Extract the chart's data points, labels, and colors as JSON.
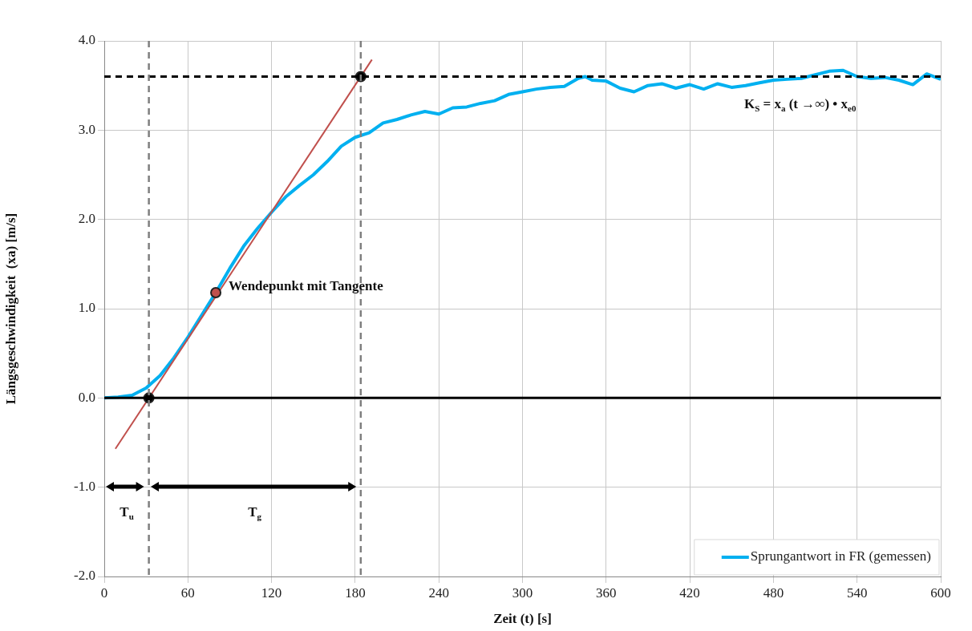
{
  "chart_data": {
    "type": "line",
    "xlabel": "Zeit (t) [s]",
    "ylabel": "Längsgeschwindigkeit  (xa) [m/s]",
    "xlim": [
      0,
      600
    ],
    "xticks": [
      0,
      60,
      120,
      180,
      240,
      300,
      360,
      420,
      480,
      540,
      600
    ],
    "ylim": [
      -2,
      4
    ],
    "yticks": [
      {
        "value": -2,
        "label": "-2.0"
      },
      {
        "value": -1,
        "label": "-1.0"
      },
      {
        "value": 0,
        "label": "0.0"
      },
      {
        "value": 1,
        "label": "1.0"
      },
      {
        "value": 2,
        "label": "2.0"
      },
      {
        "value": 3,
        "label": "3.0"
      },
      {
        "value": 4,
        "label": "4.0"
      }
    ],
    "grid": true,
    "legend": "bottom right",
    "series": [
      {
        "name": "Sprungantwort in FR (gemessen)",
        "color": "#00b0f0",
        "marker": "none",
        "x": [
          0,
          10,
          20,
          30,
          40,
          50,
          60,
          70,
          80,
          90,
          100,
          110,
          120,
          130,
          140,
          150,
          160,
          170,
          180,
          190,
          200,
          210,
          220,
          230,
          240,
          250,
          260,
          270,
          280,
          290,
          300,
          310,
          320,
          330,
          340,
          345,
          350,
          360,
          370,
          380,
          390,
          400,
          410,
          420,
          430,
          440,
          450,
          460,
          470,
          480,
          490,
          500,
          510,
          520,
          530,
          540,
          550,
          560,
          570,
          580,
          590,
          600
        ],
        "values": [
          0,
          0.01,
          0.03,
          0.11,
          0.25,
          0.45,
          0.68,
          0.93,
          1.18,
          1.45,
          1.7,
          1.9,
          2.08,
          2.25,
          2.38,
          2.5,
          2.65,
          2.82,
          2.92,
          2.97,
          3.08,
          3.12,
          3.17,
          3.21,
          3.18,
          3.25,
          3.26,
          3.3,
          3.33,
          3.4,
          3.43,
          3.46,
          3.48,
          3.49,
          3.58,
          3.6,
          3.56,
          3.55,
          3.47,
          3.43,
          3.5,
          3.52,
          3.47,
          3.51,
          3.46,
          3.52,
          3.48,
          3.5,
          3.53,
          3.56,
          3.57,
          3.58,
          3.62,
          3.66,
          3.67,
          3.6,
          3.58,
          3.59,
          3.56,
          3.51,
          3.63,
          3.57
        ]
      },
      {
        "color": "#c0504d",
        "marker": "none",
        "x": [
          8,
          192
        ],
        "values": [
          -0.57,
          3.79
        ]
      },
      {
        "color": "#000000",
        "type": "scatter",
        "marker": "circle",
        "x": [
          32,
          184
        ],
        "values": [
          0,
          3.6
        ]
      },
      {
        "color": "#c0504d",
        "type": "scatter",
        "marker": "circle",
        "x": [
          80
        ],
        "values": [
          1.18
        ]
      }
    ],
    "ref_lines": [
      {
        "axis": "y",
        "value": 3.6,
        "color": "#000000",
        "line_style": "dashed"
      },
      {
        "axis": "y",
        "value": 0,
        "color": "#000000",
        "line_style": "solid"
      },
      {
        "axis": "x",
        "value": 32,
        "color": "#7f7f7f",
        "line_style": "dashed"
      },
      {
        "axis": "x",
        "value": 184,
        "color": "#7f7f7f",
        "line_style": "dashed"
      }
    ],
    "annotations": [
      {
        "text": "K$_{S}$ = x$_{a}$ (t →∞) • x$_{e0}$",
        "x": 459,
        "y": 3.6
      },
      {
        "text": "Wendepunkt  mit Tangente",
        "x": 80,
        "y": 1.18
      },
      "T$_{u}$",
      "T$_{g}$"
    ]
  }
}
